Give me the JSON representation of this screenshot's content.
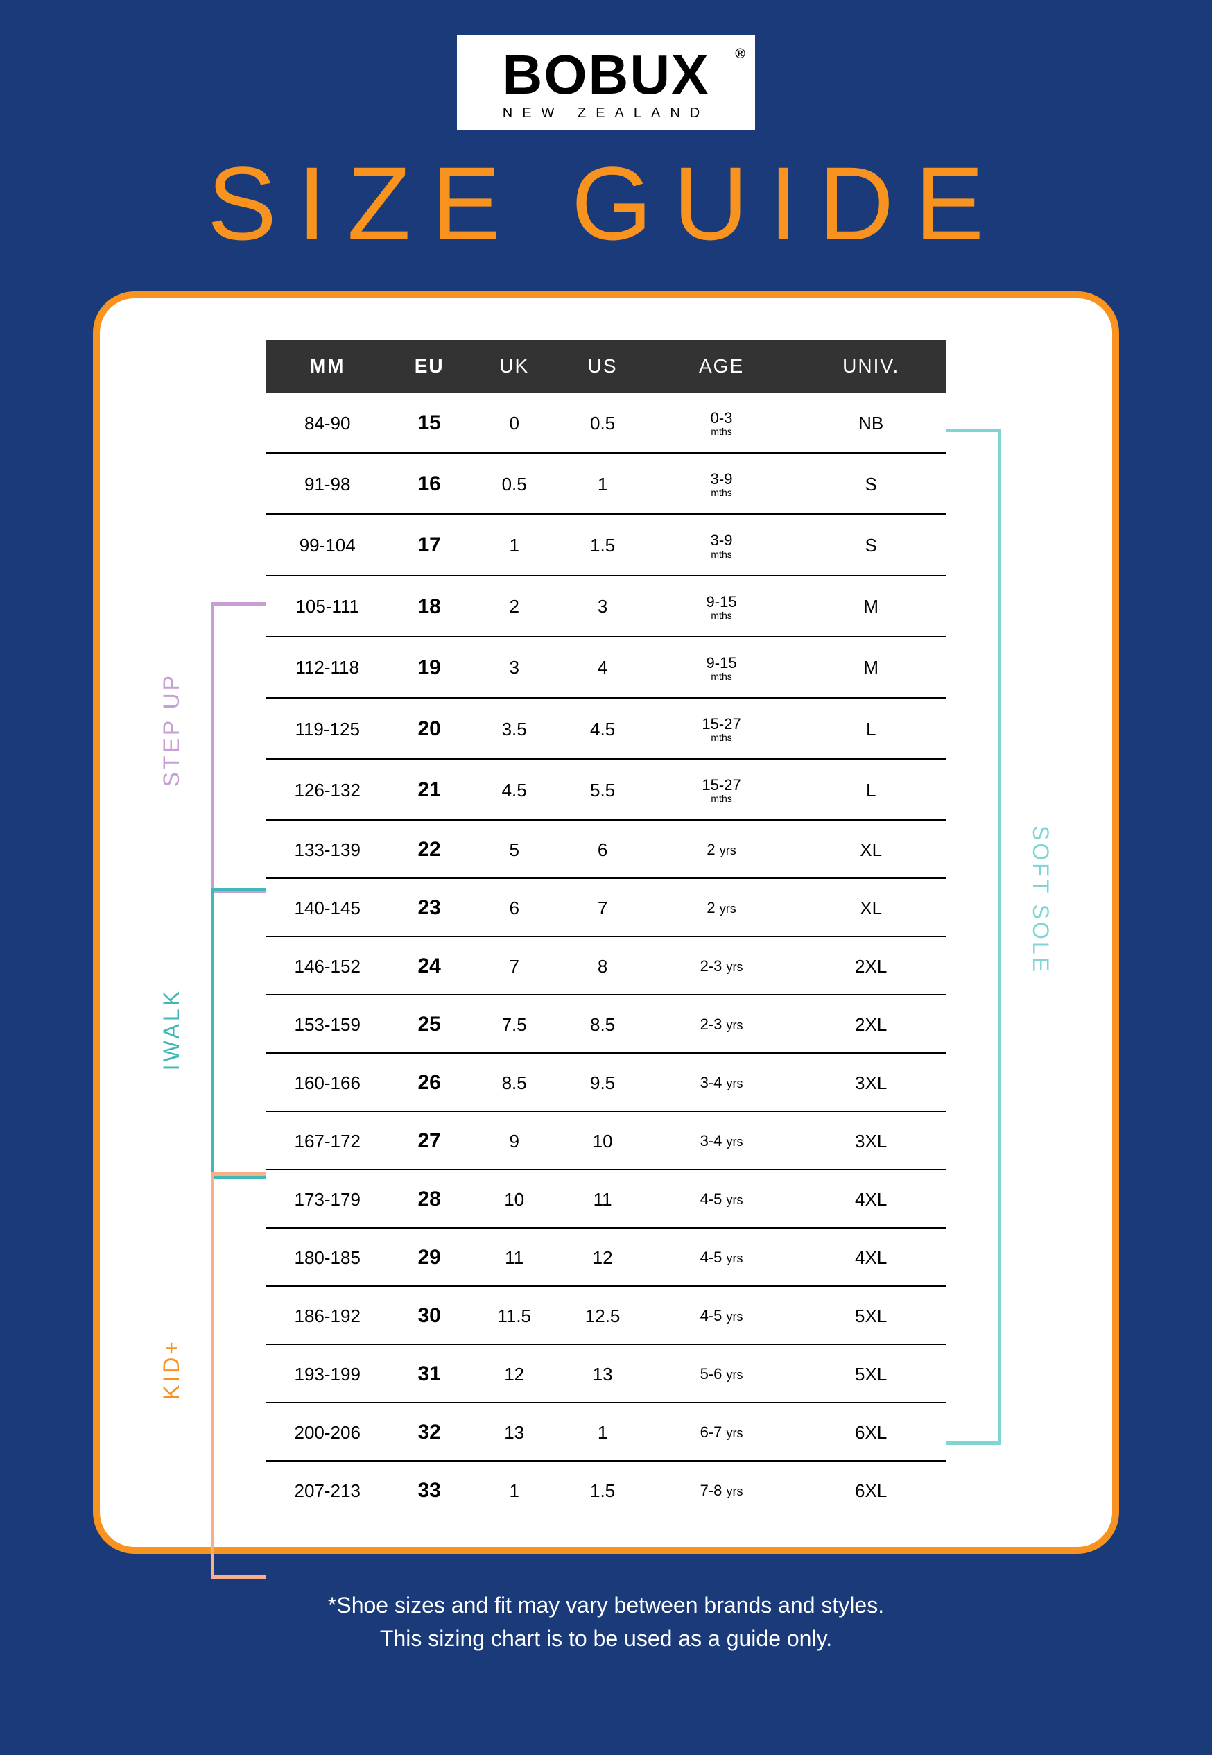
{
  "brand": {
    "name": "BOBUX",
    "registered": "®",
    "subtitle": "NEW ZEALAND"
  },
  "title": "SIZE GUIDE",
  "columns": [
    "MM",
    "EU",
    "UK",
    "US",
    "AGE",
    "UNIV."
  ],
  "rows": [
    {
      "mm": "84-90",
      "eu": "15",
      "uk": "0",
      "us": "0.5",
      "age": "0-3",
      "age_unit": "mths",
      "univ": "NB"
    },
    {
      "mm": "91-98",
      "eu": "16",
      "uk": "0.5",
      "us": "1",
      "age": "3-9",
      "age_unit": "mths",
      "univ": "S"
    },
    {
      "mm": "99-104",
      "eu": "17",
      "uk": "1",
      "us": "1.5",
      "age": "3-9",
      "age_unit": "mths",
      "univ": "S"
    },
    {
      "mm": "105-111",
      "eu": "18",
      "uk": "2",
      "us": "3",
      "age": "9-15",
      "age_unit": "mths",
      "univ": "M"
    },
    {
      "mm": "112-118",
      "eu": "19",
      "uk": "3",
      "us": "4",
      "age": "9-15",
      "age_unit": "mths",
      "univ": "M"
    },
    {
      "mm": "119-125",
      "eu": "20",
      "uk": "3.5",
      "us": "4.5",
      "age": "15-27",
      "age_unit": "mths",
      "univ": "L"
    },
    {
      "mm": "126-132",
      "eu": "21",
      "uk": "4.5",
      "us": "5.5",
      "age": "15-27",
      "age_unit": "mths",
      "univ": "L"
    },
    {
      "mm": "133-139",
      "eu": "22",
      "uk": "5",
      "us": "6",
      "age": "2",
      "age_unit": "yrs",
      "univ": "XL"
    },
    {
      "mm": "140-145",
      "eu": "23",
      "uk": "6",
      "us": "7",
      "age": "2",
      "age_unit": "yrs",
      "univ": "XL"
    },
    {
      "mm": "146-152",
      "eu": "24",
      "uk": "7",
      "us": "8",
      "age": "2-3",
      "age_unit": "yrs",
      "univ": "2XL"
    },
    {
      "mm": "153-159",
      "eu": "25",
      "uk": "7.5",
      "us": "8.5",
      "age": "2-3",
      "age_unit": "yrs",
      "univ": "2XL"
    },
    {
      "mm": "160-166",
      "eu": "26",
      "uk": "8.5",
      "us": "9.5",
      "age": "3-4",
      "age_unit": "yrs",
      "univ": "3XL"
    },
    {
      "mm": "167-172",
      "eu": "27",
      "uk": "9",
      "us": "10",
      "age": "3-4",
      "age_unit": "yrs",
      "univ": "3XL"
    },
    {
      "mm": "173-179",
      "eu": "28",
      "uk": "10",
      "us": "11",
      "age": "4-5",
      "age_unit": "yrs",
      "univ": "4XL"
    },
    {
      "mm": "180-185",
      "eu": "29",
      "uk": "11",
      "us": "12",
      "age": "4-5",
      "age_unit": "yrs",
      "univ": "4XL"
    },
    {
      "mm": "186-192",
      "eu": "30",
      "uk": "11.5",
      "us": "12.5",
      "age": "4-5",
      "age_unit": "yrs",
      "univ": "5XL"
    },
    {
      "mm": "193-199",
      "eu": "31",
      "uk": "12",
      "us": "13",
      "age": "5-6",
      "age_unit": "yrs",
      "univ": "5XL"
    },
    {
      "mm": "200-206",
      "eu": "32",
      "uk": "13",
      "us": "1",
      "age": "6-7",
      "age_unit": "yrs",
      "univ": "6XL"
    },
    {
      "mm": "207-213",
      "eu": "33",
      "uk": "1",
      "us": "1.5",
      "age": "7-8",
      "age_unit": "yrs",
      "univ": "6XL"
    }
  ],
  "ranges": {
    "softsole": "SOFT SOLE",
    "stepup": "STEP UP",
    "iwalk": "IWALK",
    "kid": "KID+"
  },
  "footnote_line1": "*Shoe sizes and fit may vary between brands and styles.",
  "footnote_line2": "This sizing chart is to be used as a guide only.",
  "colors": {
    "background": "#1a3a7a",
    "accent": "#f7931e",
    "softsole": "#7fd4d4",
    "stepup": "#c89fd4",
    "iwalk": "#3fb8b8",
    "kid_bracket": "#f7b08a",
    "kid_label": "#f7931e",
    "header_bg": "#333333"
  }
}
